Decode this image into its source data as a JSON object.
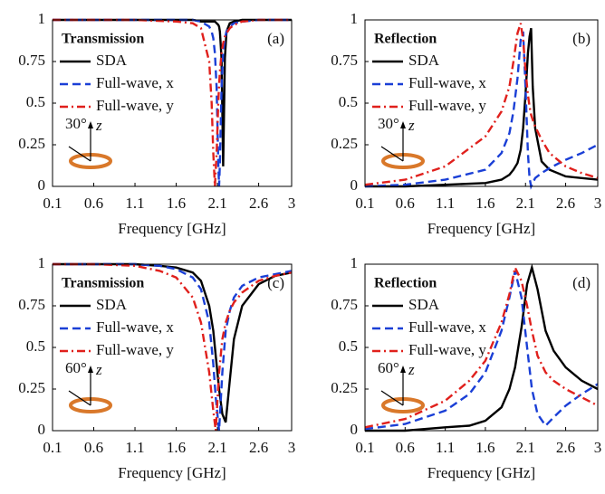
{
  "chart_data": [
    {
      "type": "line",
      "title": "Transmission",
      "panel_label": "(a)",
      "inset_angle": "30°",
      "inset_axis": "z",
      "xlabel": "Frequency [GHz]",
      "x": [
        0.1,
        0.6,
        1.1,
        1.6,
        1.8,
        1.9,
        2.0,
        2.03,
        2.05,
        2.07,
        2.09,
        2.11,
        2.12,
        2.13,
        2.15,
        2.17,
        2.19,
        2.21,
        2.25,
        2.3,
        2.4,
        2.6,
        2.8,
        3
      ],
      "series": [
        {
          "name": "SDA",
          "color": "#000000",
          "style": "solid",
          "values": [
            1,
            1,
            1,
            1,
            1,
            0.99,
            0.99,
            0.99,
            0.99,
            0.99,
            0.98,
            0.97,
            0.96,
            0.93,
            0.77,
            0.12,
            0.77,
            0.93,
            0.98,
            0.99,
            1,
            1,
            1,
            1
          ]
        },
        {
          "name": "Full-wave, x",
          "color": "#1a3fd6",
          "style": "dashed",
          "values": [
            1,
            1,
            1,
            1,
            1,
            0.99,
            0.96,
            0.93,
            0.89,
            0.8,
            0.59,
            0.14,
            0,
            0.14,
            0.59,
            0.8,
            0.89,
            0.93,
            0.96,
            0.98,
            0.99,
            1,
            1,
            1
          ]
        },
        {
          "name": "Full-wave, y",
          "color": "#e0201c",
          "style": "dashdot",
          "values": [
            1,
            1,
            1,
            0.99,
            0.98,
            0.95,
            0.75,
            0.5,
            0.2,
            0,
            0.2,
            0.5,
            0.61,
            0.69,
            0.8,
            0.86,
            0.9,
            0.92,
            0.95,
            0.97,
            0.99,
            1,
            1,
            1
          ]
        }
      ],
      "xlim": [
        0.1,
        3
      ],
      "xticks": [
        0.1,
        0.6,
        1.1,
        1.6,
        2.1,
        2.6,
        3
      ],
      "ylim": [
        0,
        1
      ],
      "yticks": [
        0,
        0.25,
        0.5,
        0.75,
        1
      ]
    },
    {
      "type": "line",
      "title": "Reflection",
      "panel_label": "(b)",
      "inset_angle": "30°",
      "inset_axis": "z",
      "xlabel": "Frequency [GHz]",
      "x": [
        0.1,
        0.6,
        1.1,
        1.6,
        1.8,
        1.9,
        1.95,
        2.0,
        2.04,
        2.07,
        2.1,
        2.13,
        2.15,
        2.17,
        2.19,
        2.22,
        2.3,
        2.4,
        2.6,
        2.8,
        3
      ],
      "series": [
        {
          "name": "SDA",
          "color": "#000000",
          "style": "solid",
          "values": [
            0,
            0,
            0.01,
            0.02,
            0.04,
            0.07,
            0.1,
            0.14,
            0.22,
            0.35,
            0.55,
            0.8,
            0.9,
            0.95,
            0.6,
            0.35,
            0.15,
            0.1,
            0.06,
            0.05,
            0.04
          ]
        },
        {
          "name": "Full-wave, x",
          "color": "#1a3fd6",
          "style": "dashed",
          "values": [
            0,
            0.01,
            0.04,
            0.1,
            0.2,
            0.32,
            0.45,
            0.65,
            0.88,
            0.93,
            0.6,
            0.2,
            0.05,
            0,
            0.02,
            0.05,
            0.08,
            0.11,
            0.16,
            0.2,
            0.25
          ]
        },
        {
          "name": "Full-wave, y",
          "color": "#e0201c",
          "style": "dashdot",
          "values": [
            0.01,
            0.04,
            0.12,
            0.3,
            0.45,
            0.6,
            0.75,
            0.92,
            0.98,
            0.88,
            0.7,
            0.55,
            0.48,
            0.43,
            0.4,
            0.36,
            0.28,
            0.2,
            0.12,
            0.08,
            0.05
          ]
        }
      ],
      "xlim": [
        0.1,
        3
      ],
      "xticks": [
        0.1,
        0.6,
        1.1,
        1.6,
        2.1,
        2.6,
        3
      ],
      "ylim": [
        0,
        1
      ],
      "yticks": [
        0,
        0.25,
        0.5,
        0.75,
        1
      ]
    },
    {
      "type": "line",
      "title": "Transmission",
      "panel_label": "(c)",
      "inset_angle": "60°",
      "inset_axis": "z",
      "xlabel": "Frequency [GHz]",
      "x": [
        0.1,
        0.6,
        1.1,
        1.4,
        1.6,
        1.8,
        1.9,
        2.0,
        2.05,
        2.08,
        2.12,
        2.16,
        2.2,
        2.25,
        2.3,
        2.4,
        2.6,
        2.8,
        3
      ],
      "series": [
        {
          "name": "SDA",
          "color": "#000000",
          "style": "solid",
          "values": [
            1,
            1,
            1,
            0.99,
            0.98,
            0.95,
            0.9,
            0.75,
            0.6,
            0.45,
            0.25,
            0.1,
            0.05,
            0.3,
            0.55,
            0.75,
            0.88,
            0.93,
            0.95
          ]
        },
        {
          "name": "Full-wave, x",
          "color": "#1a3fd6",
          "style": "dashed",
          "values": [
            1,
            1,
            1,
            0.99,
            0.97,
            0.92,
            0.85,
            0.65,
            0.4,
            0.2,
            0,
            0.35,
            0.6,
            0.72,
            0.8,
            0.87,
            0.92,
            0.94,
            0.96
          ]
        },
        {
          "name": "Full-wave, y",
          "color": "#e0201c",
          "style": "dashdot",
          "values": [
            1,
            1,
            0.99,
            0.96,
            0.92,
            0.8,
            0.65,
            0.35,
            0.12,
            0,
            0.35,
            0.55,
            0.65,
            0.72,
            0.77,
            0.83,
            0.9,
            0.93,
            0.95
          ]
        }
      ],
      "xlim": [
        0.1,
        3
      ],
      "xticks": [
        0.1,
        0.6,
        1.1,
        1.6,
        2.1,
        2.6,
        3
      ],
      "ylim": [
        0,
        1
      ],
      "yticks": [
        0,
        0.25,
        0.5,
        0.75,
        1
      ]
    },
    {
      "type": "line",
      "title": "Reflection",
      "panel_label": "(d)",
      "inset_angle": "60°",
      "inset_axis": "z",
      "xlabel": "Frequency [GHz]",
      "x": [
        0.1,
        0.6,
        1.1,
        1.4,
        1.6,
        1.8,
        1.9,
        1.97,
        2.05,
        2.12,
        2.18,
        2.25,
        2.35,
        2.45,
        2.6,
        2.8,
        3
      ],
      "series": [
        {
          "name": "SDA",
          "color": "#000000",
          "style": "solid",
          "values": [
            0,
            0,
            0.02,
            0.03,
            0.06,
            0.14,
            0.25,
            0.38,
            0.62,
            0.88,
            0.98,
            0.85,
            0.6,
            0.48,
            0.38,
            0.3,
            0.25
          ]
        },
        {
          "name": "Full-wave, x",
          "color": "#1a3fd6",
          "style": "dashed",
          "values": [
            0.01,
            0.04,
            0.12,
            0.22,
            0.35,
            0.6,
            0.8,
            0.96,
            0.8,
            0.5,
            0.25,
            0.1,
            0.03,
            0.08,
            0.15,
            0.22,
            0.28
          ]
        },
        {
          "name": "Full-wave, y",
          "color": "#e0201c",
          "style": "dashdot",
          "values": [
            0.02,
            0.07,
            0.18,
            0.3,
            0.42,
            0.65,
            0.82,
            0.98,
            0.9,
            0.75,
            0.6,
            0.45,
            0.35,
            0.3,
            0.25,
            0.2,
            0.15
          ]
        }
      ],
      "xlim": [
        0.1,
        3
      ],
      "xticks": [
        0.1,
        0.6,
        1.1,
        1.6,
        2.1,
        2.6,
        3
      ],
      "ylim": [
        0,
        1
      ],
      "yticks": [
        0,
        0.25,
        0.5,
        0.75,
        1
      ]
    }
  ]
}
